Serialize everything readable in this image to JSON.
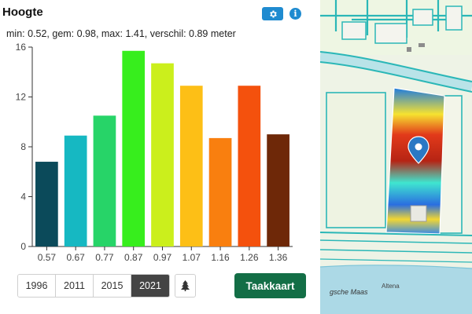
{
  "panel": {
    "title": "Hoogte",
    "settings_icon": "gear-icon",
    "info_icon": "info-icon",
    "info_glyph": "i",
    "summary": "min: 0.52, gem: 0.98, max: 1.41, verschil: 0.89 meter"
  },
  "chart_data": {
    "type": "bar",
    "categories": [
      "0.57",
      "0.67",
      "0.77",
      "0.87",
      "0.97",
      "1.07",
      "1.16",
      "1.26",
      "1.36"
    ],
    "values": [
      6.8,
      8.9,
      10.5,
      15.7,
      14.7,
      12.9,
      8.7,
      12.9,
      9.0
    ],
    "colors": [
      "#0b4a5a",
      "#16b8c2",
      "#27d468",
      "#37ee1d",
      "#cbef1c",
      "#fdbf16",
      "#f97f0f",
      "#f4510d",
      "#6e2808"
    ],
    "ylim": [
      0,
      16
    ],
    "yticks": [
      "0",
      "4",
      "8",
      "12",
      "16"
    ],
    "grid": false
  },
  "years": {
    "items": [
      "1996",
      "2011",
      "2015",
      "2021"
    ],
    "active": "2021"
  },
  "tree_icon": "tree-icon",
  "taakkaart_label": "Taakkaart",
  "map": {
    "river_label": "gsche Maas",
    "place_label": "Altena",
    "marker_icon": "map-pin-icon"
  }
}
